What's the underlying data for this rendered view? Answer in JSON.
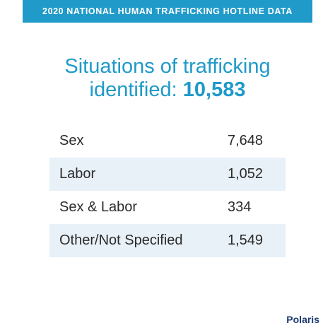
{
  "header": {
    "title": "2020 NATIONAL HUMAN TRAFFICKING HOTLINE DATA"
  },
  "headline": {
    "line1": "Situations of trafficking",
    "line2": "identified:",
    "total": "10,583"
  },
  "table": {
    "rows": [
      [
        "Sex",
        "7,648"
      ],
      [
        "Labor",
        "1,052"
      ],
      [
        "Sex & Labor",
        "334"
      ],
      [
        "Other/Not Specified",
        "1,549"
      ]
    ]
  },
  "logo": {
    "text": "Polaris"
  }
}
